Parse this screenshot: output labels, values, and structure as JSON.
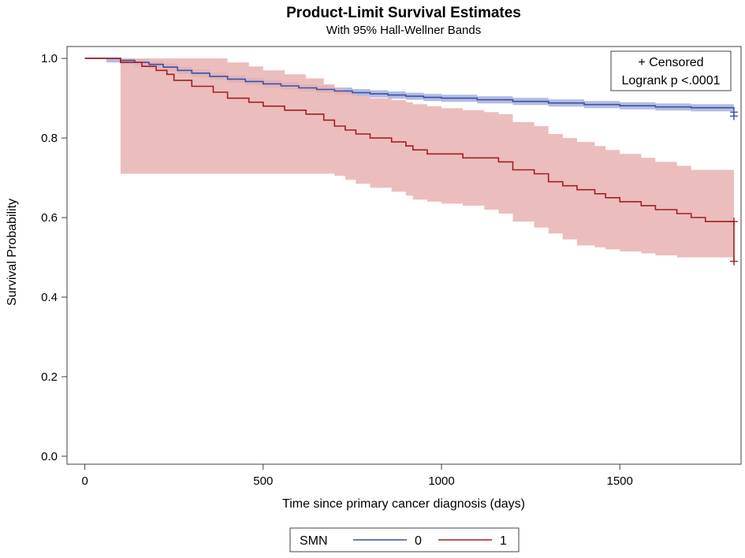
{
  "chart_data": {
    "type": "line",
    "title": "Product-Limit Survival Estimates",
    "subtitle": "With 95% Hall-Wellner Bands",
    "xlabel": "Time since primary cancer diagnosis (days)",
    "ylabel": "Survival Probability",
    "xlim": [
      -50,
      1840
    ],
    "ylim": [
      -0.02,
      1.03
    ],
    "xticks": [
      0,
      500,
      1000,
      1500
    ],
    "xtick_labels": [
      "0",
      "500",
      "1000",
      "1500"
    ],
    "yticks": [
      0.0,
      0.2,
      0.4,
      0.6,
      0.8,
      1.0
    ],
    "ytick_labels": [
      "0.0",
      "0.2",
      "0.4",
      "0.6",
      "0.8",
      "1.0"
    ],
    "grid": false,
    "inset": {
      "censored_label": "+ Censored",
      "logrank_label": "Logrank p <.0001"
    },
    "legend": {
      "title": "SMN",
      "position": "bottom",
      "entries": [
        {
          "label": "0",
          "color": "#3b4fa8"
        },
        {
          "label": "1",
          "color": "#a31f1f"
        }
      ]
    },
    "series": [
      {
        "name": "0",
        "color": "#3b4fa8",
        "band_color": "#9aa6d8",
        "x": [
          0,
          60,
          100,
          140,
          180,
          220,
          260,
          300,
          350,
          400,
          450,
          500,
          550,
          600,
          650,
          700,
          750,
          800,
          850,
          900,
          950,
          1000,
          1100,
          1200,
          1300,
          1400,
          1500,
          1600,
          1700,
          1820
        ],
        "y": [
          1.0,
          1.0,
          0.995,
          0.99,
          0.985,
          0.978,
          0.97,
          0.963,
          0.955,
          0.948,
          0.942,
          0.936,
          0.931,
          0.926,
          0.922,
          0.918,
          0.914,
          0.911,
          0.908,
          0.905,
          0.902,
          0.9,
          0.896,
          0.892,
          0.888,
          0.884,
          0.881,
          0.878,
          0.876,
          0.874
        ],
        "lower": [
          1.0,
          0.99,
          0.985,
          0.98,
          0.975,
          0.968,
          0.96,
          0.953,
          0.946,
          0.939,
          0.933,
          0.927,
          0.922,
          0.917,
          0.913,
          0.909,
          0.905,
          0.902,
          0.899,
          0.896,
          0.893,
          0.891,
          0.887,
          0.883,
          0.879,
          0.875,
          0.872,
          0.869,
          0.867,
          0.865
        ],
        "upper": [
          1.0,
          1.0,
          1.0,
          0.998,
          0.993,
          0.987,
          0.979,
          0.972,
          0.964,
          0.957,
          0.951,
          0.945,
          0.94,
          0.935,
          0.931,
          0.927,
          0.923,
          0.92,
          0.917,
          0.914,
          0.911,
          0.909,
          0.905,
          0.901,
          0.897,
          0.893,
          0.89,
          0.887,
          0.885,
          0.883
        ],
        "censored": [
          {
            "x": 1820,
            "y": 0.865
          },
          {
            "x": 1820,
            "y": 0.855
          }
        ]
      },
      {
        "name": "1",
        "color": "#a31f1f",
        "band_color": "#e9b2b2",
        "x": [
          0,
          100,
          160,
          200,
          230,
          250,
          300,
          360,
          400,
          460,
          500,
          560,
          620,
          670,
          700,
          730,
          760,
          800,
          860,
          900,
          920,
          960,
          1000,
          1060,
          1120,
          1160,
          1200,
          1260,
          1300,
          1340,
          1380,
          1430,
          1460,
          1500,
          1560,
          1600,
          1660,
          1700,
          1740,
          1820
        ],
        "y": [
          1.0,
          0.99,
          0.98,
          0.97,
          0.96,
          0.945,
          0.93,
          0.915,
          0.9,
          0.89,
          0.88,
          0.87,
          0.86,
          0.845,
          0.83,
          0.82,
          0.81,
          0.8,
          0.79,
          0.78,
          0.77,
          0.76,
          0.76,
          0.75,
          0.75,
          0.74,
          0.72,
          0.71,
          0.69,
          0.68,
          0.67,
          0.66,
          0.65,
          0.64,
          0.63,
          0.62,
          0.61,
          0.6,
          0.59,
          0.49
        ],
        "lower": [
          1.0,
          0.71,
          0.71,
          0.71,
          0.71,
          0.71,
          0.71,
          0.71,
          0.71,
          0.71,
          0.71,
          0.71,
          0.71,
          0.71,
          0.705,
          0.695,
          0.685,
          0.675,
          0.665,
          0.655,
          0.645,
          0.64,
          0.635,
          0.63,
          0.62,
          0.61,
          0.59,
          0.575,
          0.56,
          0.545,
          0.53,
          0.525,
          0.52,
          0.515,
          0.51,
          0.505,
          0.5,
          0.5,
          0.5,
          0.495
        ],
        "upper": [
          1.0,
          1.0,
          1.0,
          1.0,
          1.0,
          1.0,
          1.0,
          1.0,
          0.99,
          0.98,
          0.97,
          0.96,
          0.95,
          0.935,
          0.925,
          0.915,
          0.905,
          0.9,
          0.895,
          0.89,
          0.885,
          0.88,
          0.875,
          0.87,
          0.865,
          0.86,
          0.84,
          0.83,
          0.81,
          0.8,
          0.79,
          0.78,
          0.77,
          0.76,
          0.75,
          0.74,
          0.73,
          0.72,
          0.72,
          0.72
        ],
        "censored": [
          {
            "x": 1820,
            "y": 0.59
          },
          {
            "x": 1820,
            "y": 0.49
          }
        ]
      }
    ]
  }
}
